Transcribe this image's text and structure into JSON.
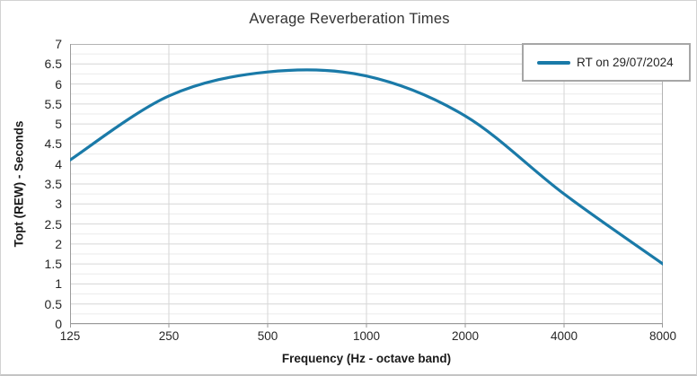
{
  "chart_data": {
    "type": "line",
    "title": "Average Reverberation Times",
    "xlabel": "Frequency (Hz - octave band)",
    "ylabel": "Topt (REW) - Seconds",
    "x_scale": "log-octave",
    "categories": [
      "125",
      "250",
      "500",
      "1000",
      "2000",
      "4000",
      "8000"
    ],
    "series": [
      {
        "name": "RT on 29/07/2024",
        "color": "#1A7AA8",
        "values": [
          4.1,
          5.7,
          6.3,
          6.2,
          5.2,
          3.25,
          1.5
        ],
        "smooth": true,
        "stroke_width": 3.2
      }
    ],
    "ylim": [
      0,
      7
    ],
    "y_major_step": 0.5,
    "y_minor_step": 0.25,
    "y_ticks": [
      "7",
      "6.5",
      "6",
      "5.5",
      "5",
      "4.5",
      "4",
      "3.5",
      "3",
      "2.5",
      "2",
      "1.5",
      "1",
      "0.5",
      "0"
    ],
    "grid": {
      "major_color": "#d6d6d6",
      "minor_color": "#ebebeb",
      "axis_color": "#9a9a9a",
      "border_color": "#b3b3b3",
      "vertical_gridlines": true
    },
    "legend": {
      "position": "top-right"
    }
  }
}
